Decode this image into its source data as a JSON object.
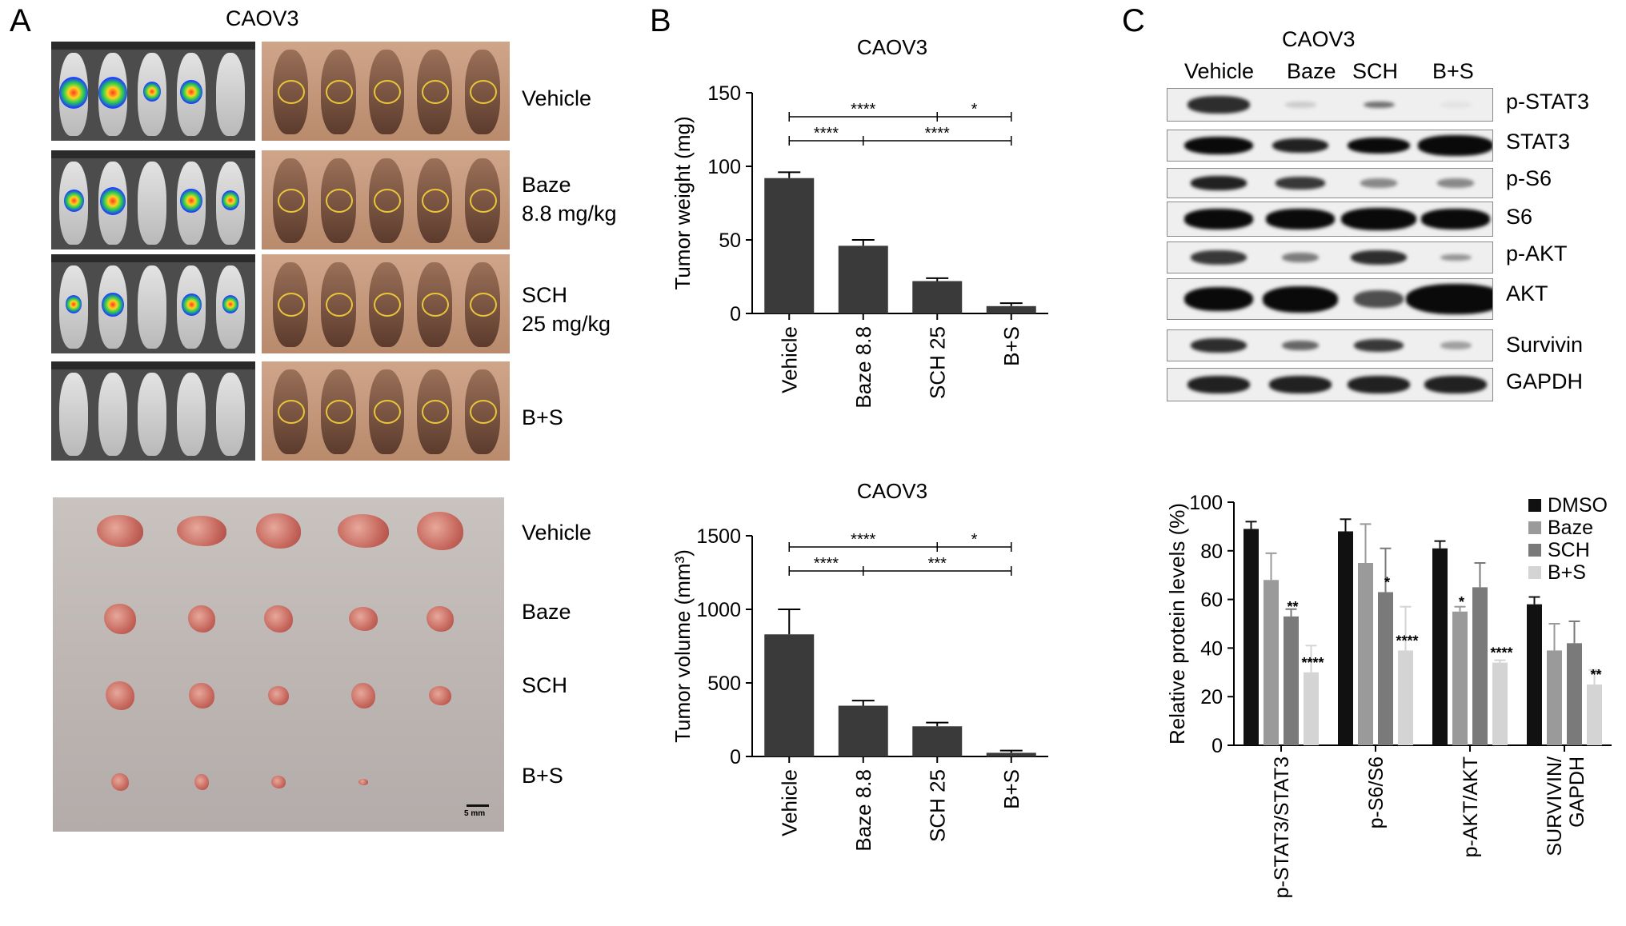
{
  "panels": {
    "a": {
      "letter": "A",
      "title": "CAOV3",
      "group_labels": [
        "Vehicle",
        "Baze",
        "SCH",
        "B+S"
      ],
      "dose_labels": [
        "",
        "8.8 mg/kg",
        "25 mg/kg",
        ""
      ],
      "tumor_labels": [
        "Vehicle",
        "Baze",
        "SCH",
        "B+S"
      ],
      "scale_bar": "5 mm"
    },
    "b": {
      "letter": "B"
    },
    "c": {
      "letter": "C",
      "title": "CAOV3",
      "lane_labels": [
        "Vehicle",
        "Baze",
        "SCH",
        "B+S"
      ],
      "blot_labels": [
        "p-STAT3",
        "STAT3",
        "p-S6",
        "S6",
        "p-AKT",
        "AKT",
        "Survivin",
        "GAPDH"
      ]
    }
  },
  "chart_data": [
    {
      "type": "bar",
      "title": "CAOV3",
      "ylabel": "Tumor weight (mg)",
      "categories": [
        "Vehicle",
        "Baze 8.8",
        "SCH 25",
        "B+S"
      ],
      "values": [
        92,
        46,
        22,
        5
      ],
      "errors": [
        4,
        4,
        2,
        2
      ],
      "ylim": [
        0,
        150
      ],
      "yticks": [
        0,
        50,
        100,
        150
      ],
      "bar_color": "#3a3a3a",
      "significance": [
        {
          "from": 0,
          "to": 2,
          "label": "****"
        },
        {
          "from": 2,
          "to": 3,
          "label": "*"
        },
        {
          "from": 0,
          "to": 1,
          "label": "****"
        },
        {
          "from": 1,
          "to": 3,
          "label": "****"
        }
      ]
    },
    {
      "type": "bar",
      "title": "CAOV3",
      "ylabel": "Tumor volume (mm³)",
      "categories": [
        "Vehicle",
        "Baze 8.8",
        "SCH 25",
        "B+S"
      ],
      "values": [
        830,
        345,
        205,
        25
      ],
      "errors": [
        170,
        35,
        25,
        15
      ],
      "ylim": [
        0,
        1500
      ],
      "yticks": [
        0,
        500,
        1000,
        1500
      ],
      "bar_color": "#3a3a3a",
      "significance": [
        {
          "from": 0,
          "to": 2,
          "label": "****"
        },
        {
          "from": 2,
          "to": 3,
          "label": "*"
        },
        {
          "from": 0,
          "to": 1,
          "label": "****"
        },
        {
          "from": 1,
          "to": 3,
          "label": "***"
        }
      ]
    },
    {
      "type": "bar",
      "ylabel": "Relative protein levels (%)",
      "categories": [
        "p-STAT3/STAT3",
        "p-S6/S6",
        "p-AKT/AKT",
        "SURVIVIN/ GAPDH"
      ],
      "ylim": [
        0,
        100
      ],
      "yticks": [
        0,
        20,
        40,
        60,
        80,
        100
      ],
      "series": [
        {
          "name": "DMSO",
          "color": "#111111",
          "values": [
            89,
            88,
            81,
            58
          ],
          "errors": [
            3,
            5,
            3,
            3
          ],
          "stars": [
            "",
            "",
            "",
            ""
          ]
        },
        {
          "name": "Baze",
          "color": "#9a9a9a",
          "values": [
            68,
            75,
            55,
            39
          ],
          "errors": [
            11,
            16,
            2,
            11
          ],
          "stars": [
            "",
            "",
            "*",
            ""
          ]
        },
        {
          "name": "SCH",
          "color": "#7a7a7a",
          "values": [
            53,
            63,
            65,
            42
          ],
          "errors": [
            3,
            18,
            10,
            9
          ],
          "stars": [
            "**",
            "*",
            "",
            ""
          ]
        },
        {
          "name": "B+S",
          "color": "#d4d4d4",
          "values": [
            30,
            39,
            34,
            25
          ],
          "errors": [
            11,
            18,
            1,
            6
          ],
          "stars": [
            "****",
            "****",
            "****",
            "**"
          ]
        }
      ]
    }
  ]
}
